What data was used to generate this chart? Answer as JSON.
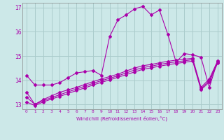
{
  "title": "",
  "xlabel": "Windchill (Refroidissement éolien,°C)",
  "x_values": [
    0,
    1,
    2,
    3,
    4,
    5,
    6,
    7,
    8,
    9,
    10,
    11,
    12,
    13,
    14,
    15,
    16,
    17,
    18,
    19,
    20,
    21,
    22,
    23
  ],
  "main_line": [
    14.2,
    13.8,
    13.8,
    13.8,
    13.9,
    14.1,
    14.3,
    14.35,
    14.4,
    14.2,
    15.8,
    16.5,
    16.7,
    16.95,
    17.05,
    16.7,
    16.9,
    15.9,
    14.75,
    15.1,
    15.05,
    14.95,
    13.7,
    14.8
  ],
  "line2": [
    13.5,
    13.0,
    13.2,
    13.35,
    13.5,
    13.6,
    13.7,
    13.82,
    13.94,
    14.05,
    14.15,
    14.25,
    14.38,
    14.5,
    14.6,
    14.65,
    14.72,
    14.78,
    14.83,
    14.87,
    14.9,
    13.7,
    14.05,
    14.8
  ],
  "line3": [
    13.3,
    13.0,
    13.15,
    13.28,
    13.4,
    13.52,
    13.63,
    13.75,
    13.87,
    13.98,
    14.08,
    14.18,
    14.3,
    14.42,
    14.52,
    14.58,
    14.65,
    14.71,
    14.76,
    14.8,
    14.85,
    13.65,
    13.98,
    14.75
  ],
  "line4": [
    13.1,
    12.95,
    13.1,
    13.22,
    13.33,
    13.45,
    13.57,
    13.68,
    13.8,
    13.91,
    14.01,
    14.12,
    14.23,
    14.34,
    14.45,
    14.51,
    14.58,
    14.64,
    14.69,
    14.74,
    14.79,
    13.6,
    13.92,
    14.7
  ],
  "line_color": "#aa00aa",
  "bg_color": "#cce8e8",
  "grid_color": "#aacccc",
  "ylim": [
    12.8,
    17.2
  ],
  "xlim": [
    -0.5,
    23.5
  ],
  "yticks": [
    13,
    14,
    15,
    16,
    17
  ],
  "xtick_labels": [
    "0",
    "1",
    "2",
    "3",
    "4",
    "5",
    "6",
    "7",
    "8",
    "9",
    "10",
    "11",
    "12",
    "13",
    "14",
    "15",
    "16",
    "17",
    "18",
    "19",
    "20",
    "21",
    "22",
    "23"
  ]
}
